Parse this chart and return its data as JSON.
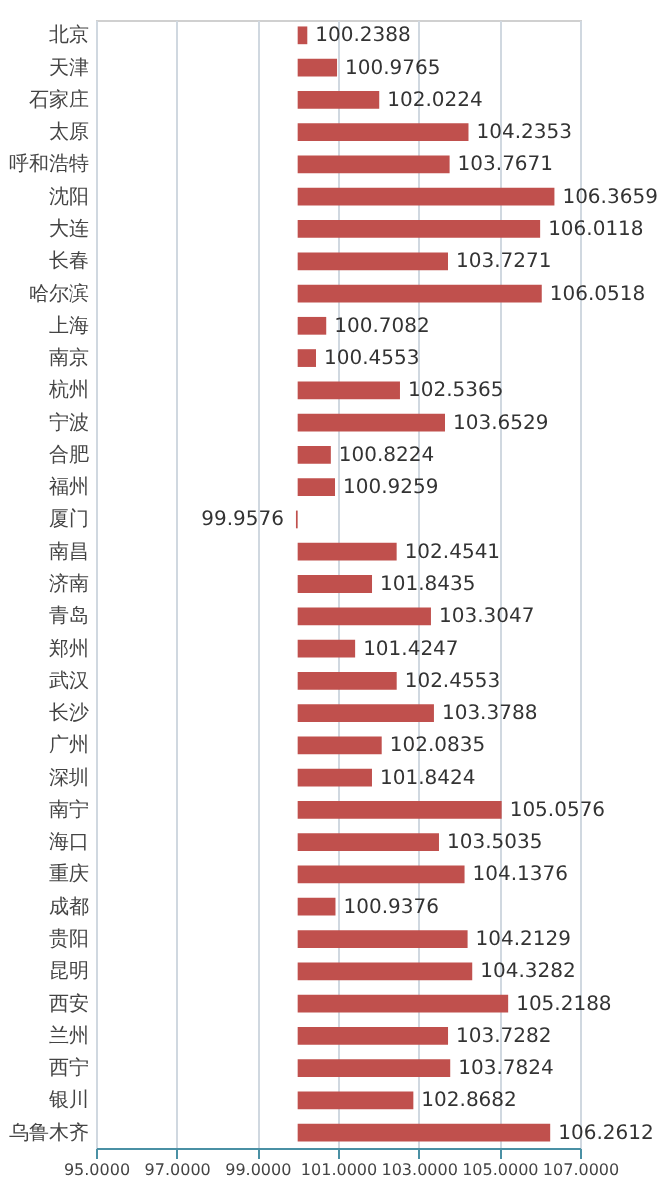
{
  "chart_data": {
    "type": "bar",
    "orientation": "horizontal",
    "categories": [
      "北京",
      "天津",
      "石家庄",
      "太原",
      "呼和浩特",
      "沈阳",
      "大连",
      "长春",
      "哈尔滨",
      "上海",
      "南京",
      "杭州",
      "宁波",
      "合肥",
      "福州",
      "厦门",
      "南昌",
      "济南",
      "青岛",
      "郑州",
      "武汉",
      "长沙",
      "广州",
      "深圳",
      "南宁",
      "海口",
      "重庆",
      "成都",
      "贵阳",
      "昆明",
      "西安",
      "兰州",
      "西宁",
      "银川",
      "乌鲁木齐"
    ],
    "base": [
      100,
      100,
      100,
      100,
      100,
      100,
      100,
      100,
      100,
      100,
      100,
      100,
      100,
      100,
      100,
      100,
      100,
      100,
      100,
      100,
      100,
      100,
      100,
      100,
      100,
      100,
      100,
      100,
      100,
      100,
      100,
      100,
      100,
      100,
      100
    ],
    "values": [
      0.2388,
      0.9765,
      2.0224,
      4.2353,
      3.7671,
      6.3659,
      6.0118,
      3.7271,
      6.0518,
      0.7082,
      0.4553,
      2.5365,
      3.6529,
      0.8224,
      0.9259,
      -0.0424,
      2.4541,
      1.8435,
      3.3047,
      1.4247,
      2.4553,
      3.3788,
      2.0835,
      1.8424,
      5.0576,
      3.5035,
      4.1376,
      0.9376,
      4.2129,
      4.3282,
      5.2188,
      3.7282,
      3.7824,
      2.8682,
      6.2612
    ],
    "value_labels": [
      "100.2388",
      "100.9765",
      "102.0224",
      "104.2353",
      "103.7671",
      "106.3659",
      "106.0118",
      "103.7271",
      "106.0518",
      "100.7082",
      "100.4553",
      "102.5365",
      "103.6529",
      "100.8224",
      "100.9259",
      "99.9576",
      "102.4541",
      "101.8435",
      "103.3047",
      "101.4247",
      "102.4553",
      "103.3788",
      "102.0835",
      "101.8424",
      "105.0576",
      "103.5035",
      "104.1376",
      "100.9376",
      "104.2129",
      "104.3282",
      "105.2188",
      "103.7282",
      "103.7824",
      "102.8682",
      "106.2612"
    ],
    "color": "#c0504d",
    "xlim": [
      95,
      107
    ],
    "xticks": [
      {
        "value": 95,
        "label": "95.0000"
      },
      {
        "value": 97,
        "label": "97.0000"
      },
      {
        "value": 99,
        "label": "99.0000"
      },
      {
        "value": 101,
        "label": "101.0000"
      },
      {
        "value": 103,
        "label": "103.0000"
      },
      {
        "value": 105,
        "label": "105.0000"
      },
      {
        "value": 107,
        "label": "107.0000"
      }
    ],
    "grid": "x"
  }
}
